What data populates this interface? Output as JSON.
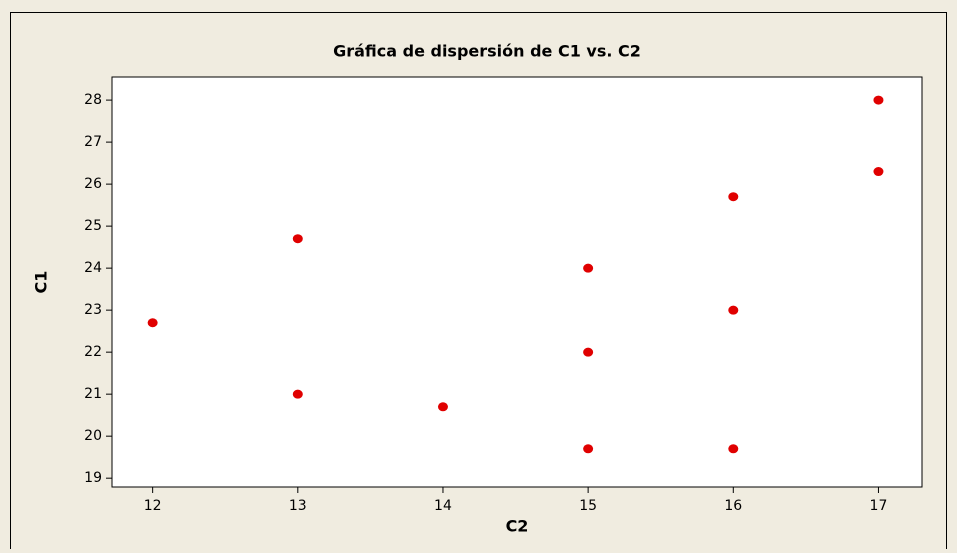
{
  "chart_data": {
    "type": "scatter",
    "title": "Gráfica de dispersión de C1 vs. C2",
    "x_label": "C2",
    "y_label": "C1",
    "x": [
      12,
      13,
      13,
      14,
      15,
      15,
      15,
      16,
      16,
      16,
      17,
      17
    ],
    "y": [
      22.7,
      24.7,
      21.0,
      20.7,
      24.0,
      22.0,
      19.7,
      25.7,
      23.0,
      19.7,
      28.0,
      26.3
    ],
    "color": "#e00000",
    "xlim": [
      11.72,
      17.3
    ],
    "ylim": [
      18.79,
      28.55
    ],
    "xticks": [
      12,
      13,
      14,
      15,
      16,
      17
    ],
    "yticks": [
      19,
      20,
      21,
      22,
      23,
      24,
      25,
      26,
      27,
      28
    ]
  }
}
